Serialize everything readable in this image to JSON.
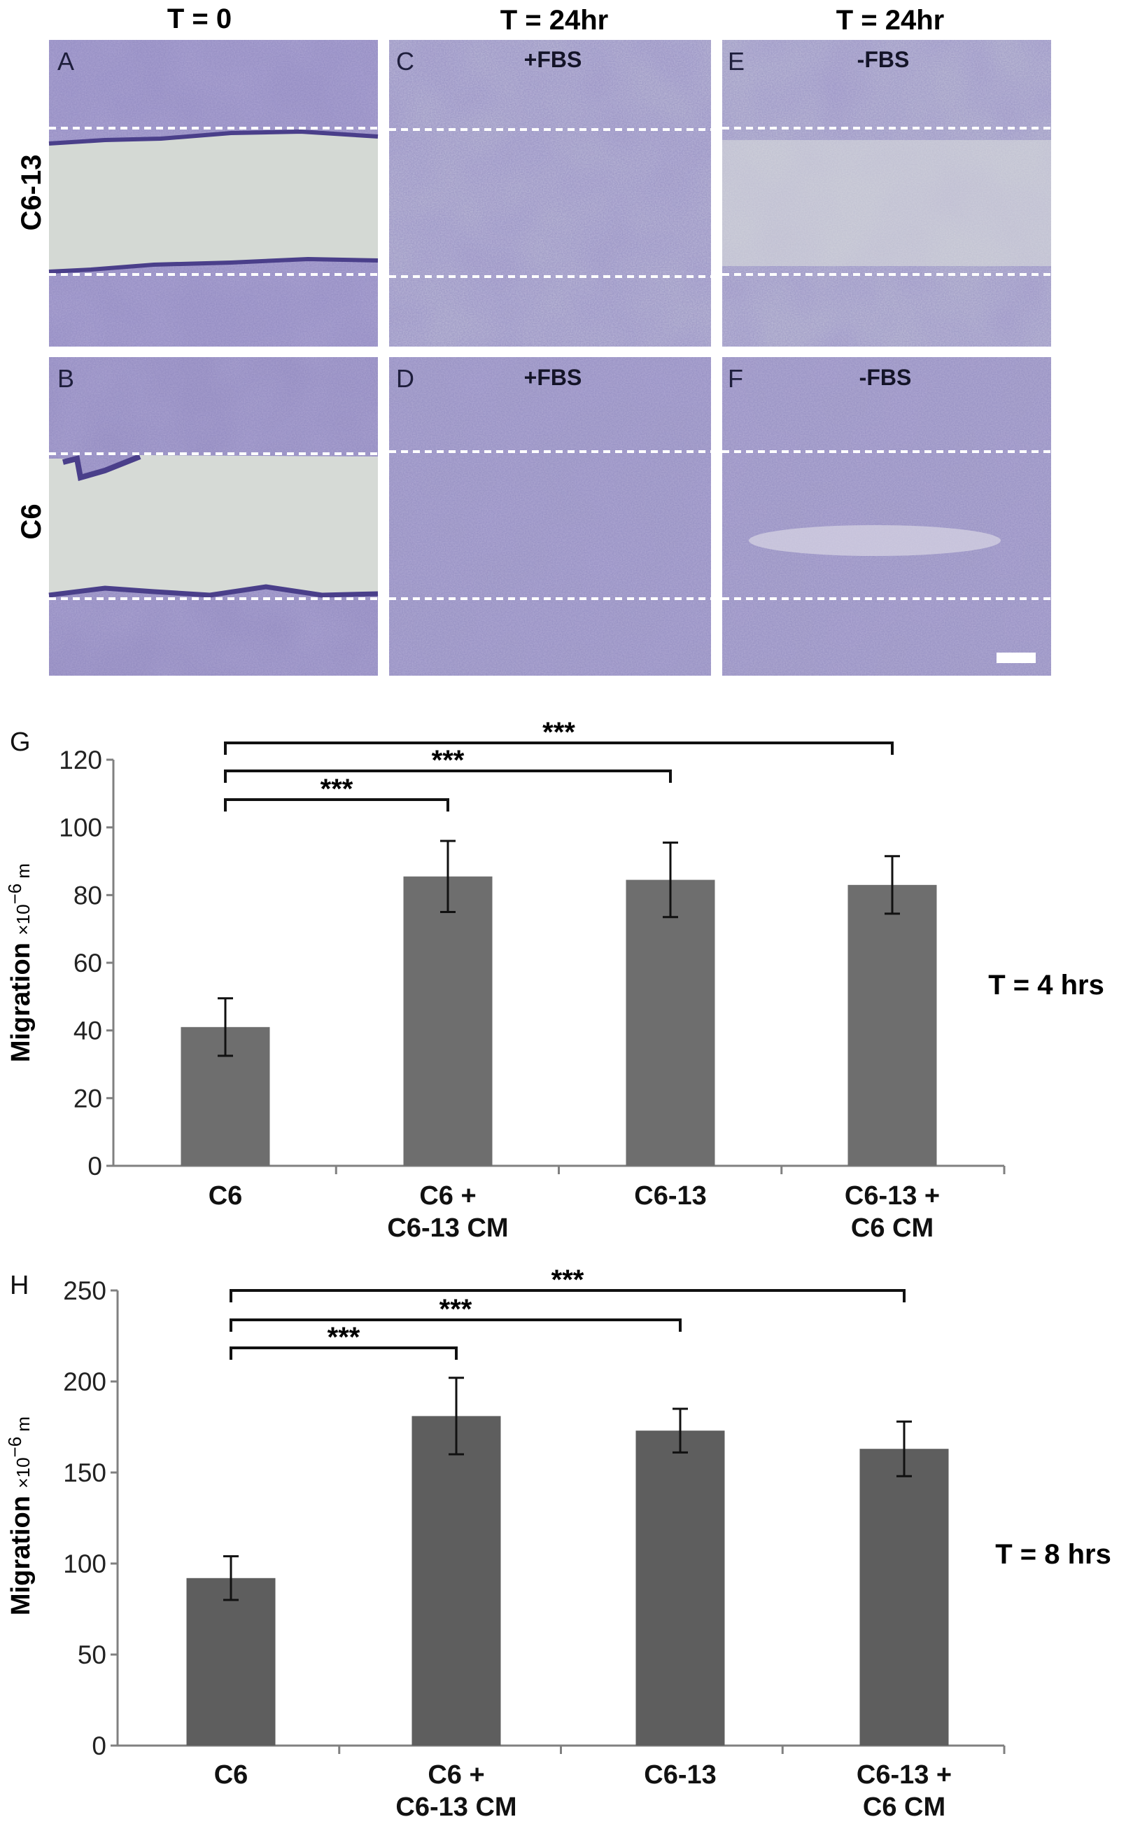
{
  "panels": {
    "col_headers": [
      "T = 0",
      "T = 24hr",
      "T = 24hr"
    ],
    "row_labels": [
      "C6-13",
      "C6"
    ],
    "images": [
      {
        "letter": "A",
        "condition": ""
      },
      {
        "letter": "C",
        "condition": "+FBS"
      },
      {
        "letter": "E",
        "condition": "-FBS"
      },
      {
        "letter": "B",
        "condition": ""
      },
      {
        "letter": "D",
        "condition": "+FBS"
      },
      {
        "letter": "F",
        "condition": "-FBS"
      }
    ]
  },
  "chart_data": [
    {
      "type": "bar",
      "panel_letter": "G",
      "categories": [
        "C6",
        "C6 + C6-13 CM",
        "C6-13",
        "C6-13 + C6 CM"
      ],
      "category_lines": [
        [
          "C6"
        ],
        [
          "C6 +",
          "C6-13 CM"
        ],
        [
          "C6-13"
        ],
        [
          "C6-13 +",
          "C6 CM"
        ]
      ],
      "values": [
        41,
        85.5,
        84.5,
        83
      ],
      "errors": [
        8.5,
        10.5,
        11,
        8.5
      ],
      "ylabel": "Migration",
      "yunit": "x10-6 m",
      "ylim": [
        0,
        120
      ],
      "yticks": [
        0,
        20,
        40,
        60,
        80,
        100,
        120
      ],
      "annotation": "T = 4 hrs",
      "significance": [
        {
          "from": 0,
          "to": 1,
          "label": "***"
        },
        {
          "from": 0,
          "to": 2,
          "label": "***"
        },
        {
          "from": 0,
          "to": 3,
          "label": "***"
        }
      ],
      "bar_color": "#6e6e6e",
      "grid": false
    },
    {
      "type": "bar",
      "panel_letter": "H",
      "categories": [
        "C6",
        "C6 + C6-13 CM",
        "C6-13",
        "C6-13 + C6 CM"
      ],
      "category_lines": [
        [
          "C6"
        ],
        [
          "C6 +",
          "C6-13 CM"
        ],
        [
          "C6-13"
        ],
        [
          "C6-13 +",
          "C6 CM"
        ]
      ],
      "values": [
        92,
        181,
        173,
        163
      ],
      "errors": [
        12,
        21,
        12,
        15
      ],
      "ylabel": "Migration",
      "yunit": "x10-6 m",
      "ylim": [
        0,
        250
      ],
      "yticks": [
        0,
        50,
        100,
        150,
        200,
        250
      ],
      "annotation": "T = 8 hrs",
      "significance": [
        {
          "from": 0,
          "to": 1,
          "label": "***"
        },
        {
          "from": 0,
          "to": 2,
          "label": "***"
        },
        {
          "from": 0,
          "to": 3,
          "label": "***"
        }
      ],
      "bar_color": "#5e5e5e",
      "grid": false
    }
  ]
}
